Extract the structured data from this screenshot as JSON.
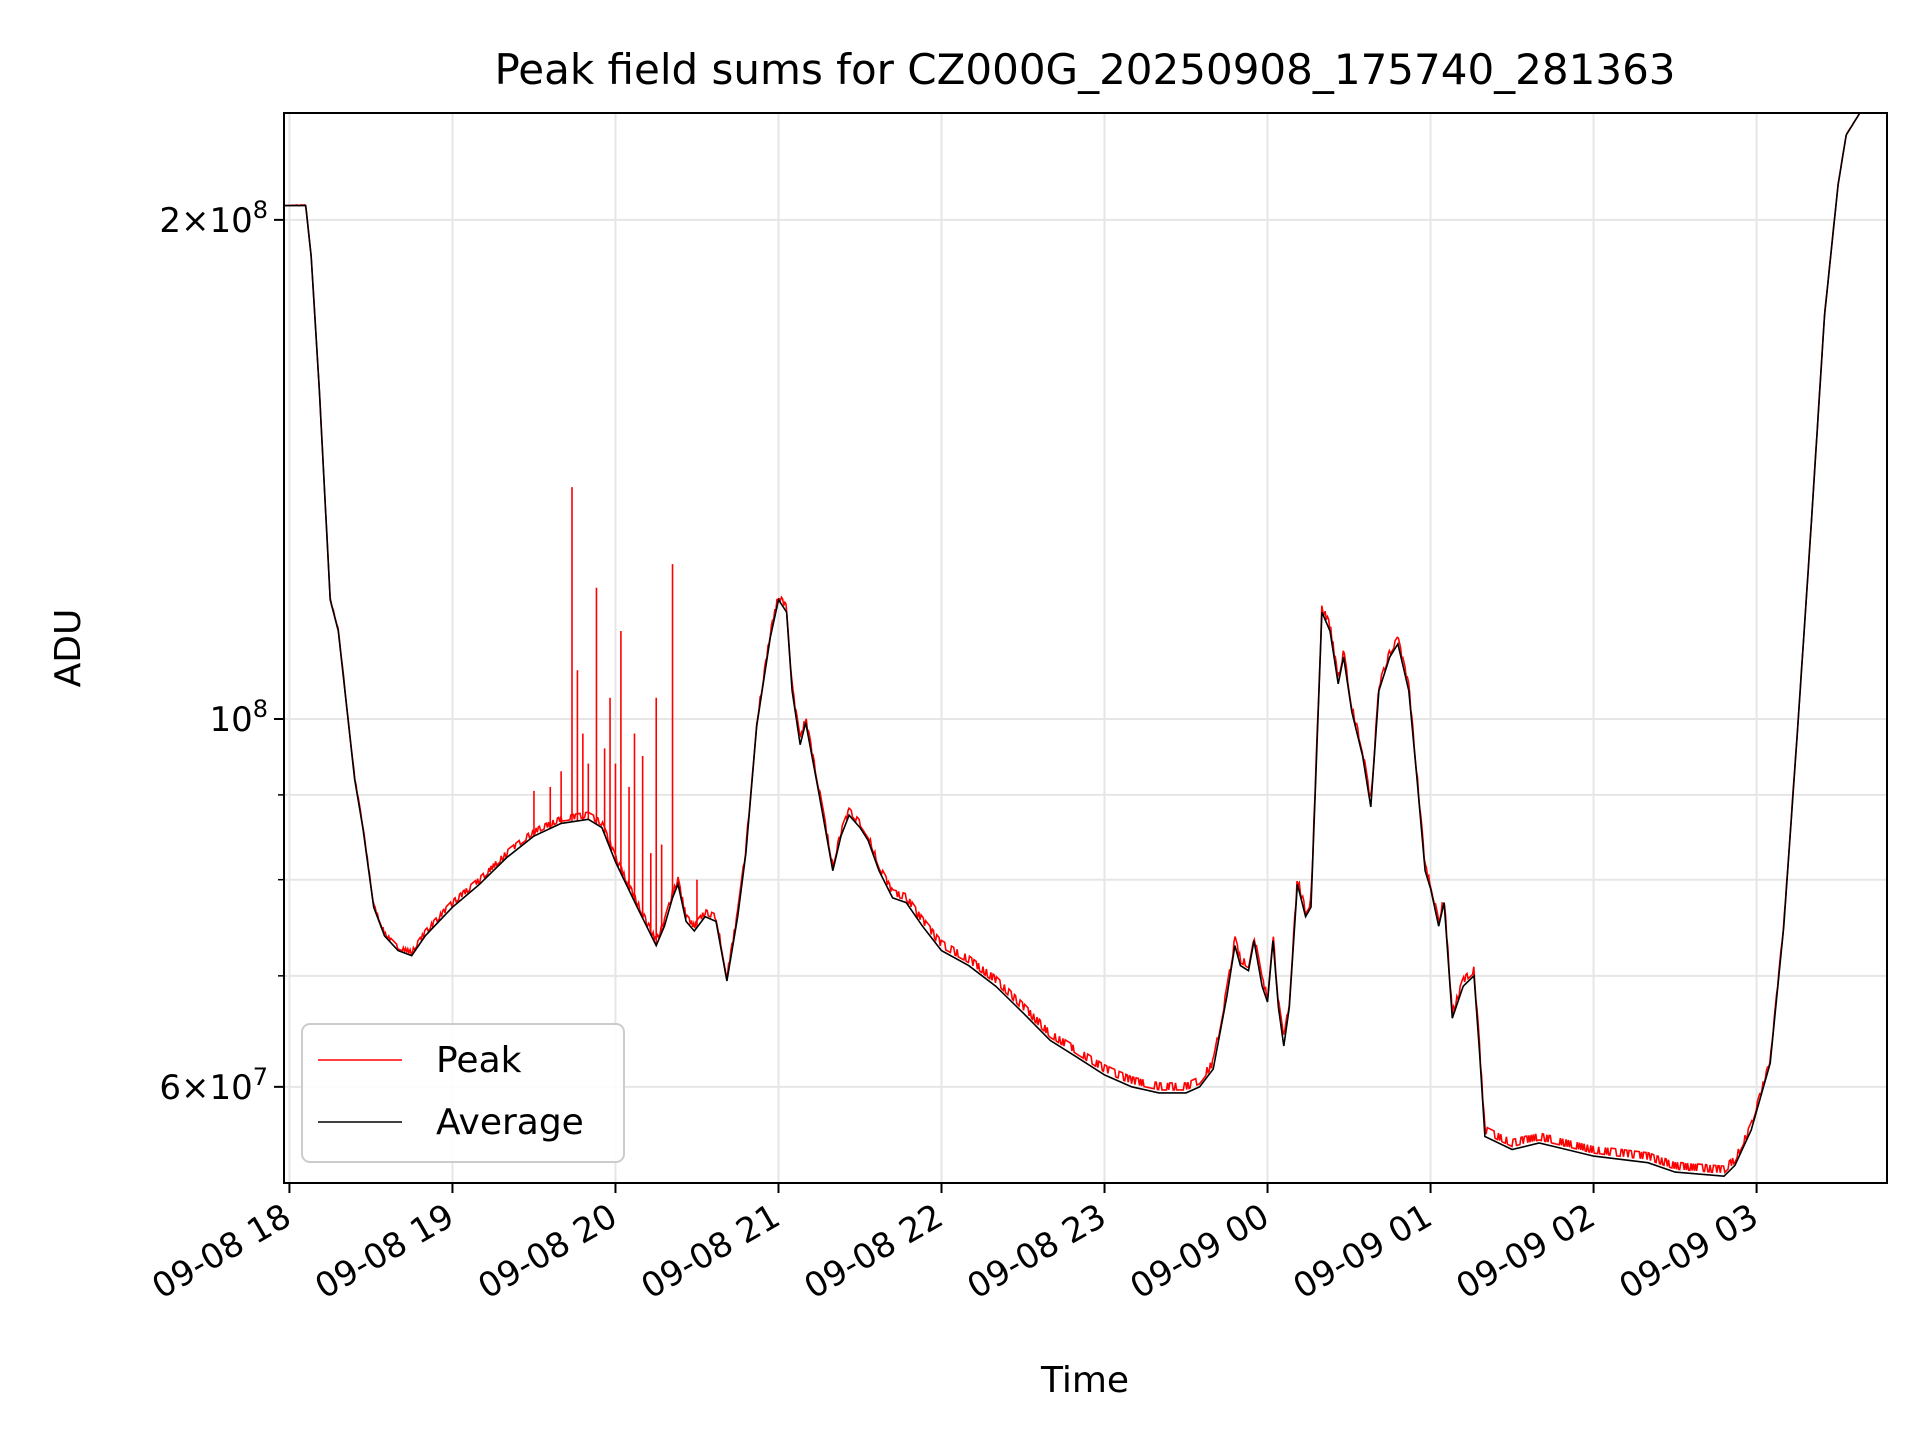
{
  "chart_data": {
    "type": "line",
    "title": "Peak field sums for CZ000G_20250908_175740_281363",
    "xlabel": "Time",
    "ylabel": "ADU",
    "y_scale": "log",
    "ylim": [
      52500000,
      232000000
    ],
    "xlim": [
      "2025-09-08 17:58",
      "2025-09-09 03:48"
    ],
    "grid": true,
    "legend_position": "lower-left",
    "x_ticks": [
      {
        "value": "2025-09-08 18:00",
        "label": "09-08 18"
      },
      {
        "value": "2025-09-08 19:00",
        "label": "09-08 19"
      },
      {
        "value": "2025-09-08 20:00",
        "label": "09-08 20"
      },
      {
        "value": "2025-09-08 21:00",
        "label": "09-08 21"
      },
      {
        "value": "2025-09-08 22:00",
        "label": "09-08 22"
      },
      {
        "value": "2025-09-08 23:00",
        "label": "09-08 23"
      },
      {
        "value": "2025-09-09 00:00",
        "label": "09-09 00"
      },
      {
        "value": "2025-09-09 01:00",
        "label": "09-09 01"
      },
      {
        "value": "2025-09-09 02:00",
        "label": "09-09 02"
      },
      {
        "value": "2025-09-09 03:00",
        "label": "09-09 03"
      }
    ],
    "y_ticks": [
      {
        "value": 60000000,
        "mantissa": "6",
        "exponent": "7"
      },
      {
        "value": 100000000,
        "mantissa": "",
        "exponent": "8"
      },
      {
        "value": 200000000,
        "mantissa": "2",
        "exponent": "8"
      }
    ],
    "y_minor_ticks": [
      70000000,
      80000000,
      90000000
    ],
    "series": [
      {
        "name": "Average",
        "color": "#000000",
        "points": [
          [
            "2025-09-08 17:58",
            204000000
          ],
          [
            "2025-09-08 18:06",
            204000000
          ],
          [
            "2025-09-08 18:08",
            190000000
          ],
          [
            "2025-09-08 18:11",
            158000000
          ],
          [
            "2025-09-08 18:15",
            118000000
          ],
          [
            "2025-09-08 18:18",
            113000000
          ],
          [
            "2025-09-08 18:24",
            92000000
          ],
          [
            "2025-09-08 18:27",
            86000000
          ],
          [
            "2025-09-08 18:31",
            77000000
          ],
          [
            "2025-09-08 18:35",
            74000000
          ],
          [
            "2025-09-08 18:40",
            72500000
          ],
          [
            "2025-09-08 18:45",
            72000000
          ],
          [
            "2025-09-08 18:50",
            74000000
          ],
          [
            "2025-09-08 18:55",
            75500000
          ],
          [
            "2025-09-08 19:00",
            77000000
          ],
          [
            "2025-09-08 19:10",
            79500000
          ],
          [
            "2025-09-08 19:20",
            82500000
          ],
          [
            "2025-09-08 19:30",
            85000000
          ],
          [
            "2025-09-08 19:40",
            86500000
          ],
          [
            "2025-09-08 19:50",
            87000000
          ],
          [
            "2025-09-08 19:55",
            86000000
          ],
          [
            "2025-09-08 20:00",
            82000000
          ],
          [
            "2025-09-08 20:08",
            77000000
          ],
          [
            "2025-09-08 20:15",
            73000000
          ],
          [
            "2025-09-08 20:18",
            75000000
          ],
          [
            "2025-09-08 20:21",
            78000000
          ],
          [
            "2025-09-08 20:23",
            79500000
          ],
          [
            "2025-09-08 20:26",
            75500000
          ],
          [
            "2025-09-08 20:29",
            74500000
          ],
          [
            "2025-09-08 20:33",
            76000000
          ],
          [
            "2025-09-08 20:37",
            75500000
          ],
          [
            "2025-09-08 20:41",
            69500000
          ],
          [
            "2025-09-08 20:45",
            76000000
          ],
          [
            "2025-09-08 20:48",
            83000000
          ],
          [
            "2025-09-08 20:52",
            99000000
          ],
          [
            "2025-09-08 20:57",
            112000000
          ],
          [
            "2025-09-08 21:00",
            118000000
          ],
          [
            "2025-09-08 21:03",
            116000000
          ],
          [
            "2025-09-08 21:05",
            104000000
          ],
          [
            "2025-09-08 21:08",
            96500000
          ],
          [
            "2025-09-08 21:10",
            99500000
          ],
          [
            "2025-09-08 21:15",
            90000000
          ],
          [
            "2025-09-08 21:20",
            81000000
          ],
          [
            "2025-09-08 21:23",
            85000000
          ],
          [
            "2025-09-08 21:26",
            87500000
          ],
          [
            "2025-09-08 21:30",
            86000000
          ],
          [
            "2025-09-08 21:33",
            84500000
          ],
          [
            "2025-09-08 21:37",
            81000000
          ],
          [
            "2025-09-08 21:42",
            78000000
          ],
          [
            "2025-09-08 21:47",
            77500000
          ],
          [
            "2025-09-08 21:53",
            75000000
          ],
          [
            "2025-09-08 22:00",
            72500000
          ],
          [
            "2025-09-08 22:10",
            71000000
          ],
          [
            "2025-09-08 22:20",
            69000000
          ],
          [
            "2025-09-08 22:30",
            66500000
          ],
          [
            "2025-09-08 22:40",
            64000000
          ],
          [
            "2025-09-08 22:50",
            62500000
          ],
          [
            "2025-09-08 23:00",
            61000000
          ],
          [
            "2025-09-08 23:10",
            60000000
          ],
          [
            "2025-09-08 23:20",
            59500000
          ],
          [
            "2025-09-08 23:30",
            59500000
          ],
          [
            "2025-09-08 23:35",
            60000000
          ],
          [
            "2025-09-08 23:40",
            61500000
          ],
          [
            "2025-09-08 23:45",
            68000000
          ],
          [
            "2025-09-08 23:48",
            73000000
          ],
          [
            "2025-09-08 23:50",
            71000000
          ],
          [
            "2025-09-08 23:53",
            70500000
          ],
          [
            "2025-09-08 23:55",
            73500000
          ],
          [
            "2025-09-08 23:58",
            69000000
          ],
          [
            "2025-09-09 00:00",
            67500000
          ],
          [
            "2025-09-09 00:02",
            73500000
          ],
          [
            "2025-09-09 00:04",
            67000000
          ],
          [
            "2025-09-09 00:06",
            63500000
          ],
          [
            "2025-09-09 00:08",
            67000000
          ],
          [
            "2025-09-09 00:11",
            79500000
          ],
          [
            "2025-09-09 00:14",
            76000000
          ],
          [
            "2025-09-09 00:16",
            77000000
          ],
          [
            "2025-09-09 00:20",
            116000000
          ],
          [
            "2025-09-09 00:23",
            113000000
          ],
          [
            "2025-09-09 00:26",
            105000000
          ],
          [
            "2025-09-09 00:28",
            109000000
          ],
          [
            "2025-09-09 00:31",
            101000000
          ],
          [
            "2025-09-09 00:35",
            95000000
          ],
          [
            "2025-09-09 00:38",
            88500000
          ],
          [
            "2025-09-09 00:41",
            104000000
          ],
          [
            "2025-09-09 00:45",
            109000000
          ],
          [
            "2025-09-09 00:48",
            111000000
          ],
          [
            "2025-09-09 00:52",
            104000000
          ],
          [
            "2025-09-09 00:55",
            92000000
          ],
          [
            "2025-09-09 00:58",
            81000000
          ],
          [
            "2025-09-09 01:00",
            79000000
          ],
          [
            "2025-09-09 01:03",
            75000000
          ],
          [
            "2025-09-09 01:05",
            77500000
          ],
          [
            "2025-09-09 01:08",
            66000000
          ],
          [
            "2025-09-09 01:12",
            69000000
          ],
          [
            "2025-09-09 01:16",
            70000000
          ],
          [
            "2025-09-09 01:18",
            63000000
          ],
          [
            "2025-09-09 01:20",
            56000000
          ],
          [
            "2025-09-09 01:30",
            55000000
          ],
          [
            "2025-09-09 01:40",
            55500000
          ],
          [
            "2025-09-09 01:50",
            55000000
          ],
          [
            "2025-09-09 02:00",
            54500000
          ],
          [
            "2025-09-09 02:20",
            54000000
          ],
          [
            "2025-09-09 02:30",
            53300000
          ],
          [
            "2025-09-09 02:48",
            53000000
          ],
          [
            "2025-09-09 02:52",
            53800000
          ],
          [
            "2025-09-09 02:58",
            56500000
          ],
          [
            "2025-09-09 03:05",
            62000000
          ],
          [
            "2025-09-09 03:10",
            75000000
          ],
          [
            "2025-09-09 03:15",
            98000000
          ],
          [
            "2025-09-09 03:20",
            130000000
          ],
          [
            "2025-09-09 03:25",
            175000000
          ],
          [
            "2025-09-09 03:30",
            210000000
          ],
          [
            "2025-09-09 03:33",
            225000000
          ],
          [
            "2025-09-09 03:38",
            232000000
          ]
        ]
      },
      {
        "name": "Peak",
        "color": "#ff0000",
        "offset": [
          [
            "2025-09-08 17:58",
            0
          ],
          [
            "2025-09-08 18:30",
            0.005
          ],
          [
            "2025-09-08 19:00",
            0.01
          ],
          [
            "2025-09-08 20:00",
            0.01
          ],
          [
            "2025-09-08 21:30",
            0.01
          ],
          [
            "2025-09-08 22:00",
            0.014
          ],
          [
            "2025-09-08 23:40",
            0.014
          ],
          [
            "2025-09-09 01:00",
            0.01
          ],
          [
            "2025-09-09 01:20",
            0.014
          ],
          [
            "2025-09-09 02:50",
            0.014
          ],
          [
            "2025-09-09 03:10",
            0.005
          ],
          [
            "2025-09-09 03:38",
            0
          ]
        ],
        "spikes": [
          [
            "2025-09-08 19:30",
            90500000
          ],
          [
            "2025-09-08 19:36",
            91000000
          ],
          [
            "2025-09-08 19:40",
            93000000
          ],
          [
            "2025-09-08 19:44",
            138000000
          ],
          [
            "2025-09-08 19:46",
            107000000
          ],
          [
            "2025-09-08 19:48",
            98000000
          ],
          [
            "2025-09-08 19:50",
            94000000
          ],
          [
            "2025-09-08 19:53",
            120000000
          ],
          [
            "2025-09-08 19:56",
            96000000
          ],
          [
            "2025-09-08 19:58",
            103000000
          ],
          [
            "2025-09-08 20:00",
            94000000
          ],
          [
            "2025-09-08 20:02",
            113000000
          ],
          [
            "2025-09-08 20:05",
            91000000
          ],
          [
            "2025-09-08 20:07",
            98000000
          ],
          [
            "2025-09-08 20:10",
            95000000
          ],
          [
            "2025-09-08 20:13",
            83000000
          ],
          [
            "2025-09-08 20:15",
            103000000
          ],
          [
            "2025-09-08 20:17",
            84000000
          ],
          [
            "2025-09-08 20:21",
            124000000
          ],
          [
            "2025-09-08 20:30",
            80000000
          ]
        ]
      }
    ]
  }
}
